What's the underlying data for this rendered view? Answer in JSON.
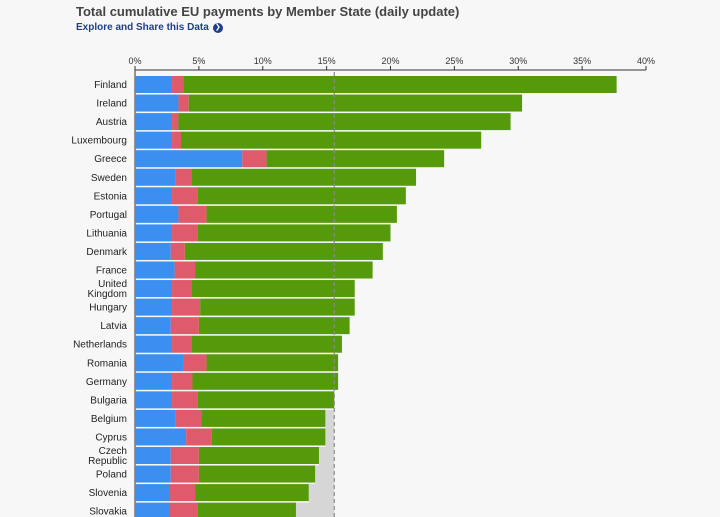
{
  "header": {
    "title": "Total cumulative EU payments by Member State (daily update)",
    "explore_label": "Explore and Share this Data"
  },
  "colors": {
    "blue": "#3b8ff0",
    "red": "#df5a6b",
    "green": "#559a0a",
    "shade": "#d6d6d6",
    "reference_line": "#8a8a8a",
    "link": "#1f3f8a"
  },
  "chart_data": {
    "type": "bar",
    "orientation": "horizontal",
    "stacked": true,
    "xlim": [
      0,
      40
    ],
    "x_ticks": [
      "0%",
      "5%",
      "10%",
      "15%",
      "20%",
      "25%",
      "30%",
      "35%",
      "40%"
    ],
    "reference_value": 15.6,
    "categories": [
      "Finland",
      "Ireland",
      "Austria",
      "Luxembourg",
      "Greece",
      "Sweden",
      "Estonia",
      "Portugal",
      "Lithuania",
      "Denmark",
      "France",
      "United Kingdom",
      "Hungary",
      "Latvia",
      "Netherlands",
      "Romania",
      "Germany",
      "Bulgaria",
      "Belgium",
      "Cyprus",
      "Czech Republic",
      "Poland",
      "Slovenia",
      "Slovakia"
    ],
    "category_lines": [
      [
        "Finland"
      ],
      [
        "Ireland"
      ],
      [
        "Austria"
      ],
      [
        "Luxembourg"
      ],
      [
        "Greece"
      ],
      [
        "Sweden"
      ],
      [
        "Estonia"
      ],
      [
        "Portugal"
      ],
      [
        "Lithuania"
      ],
      [
        "Denmark"
      ],
      [
        "France"
      ],
      [
        "United",
        "Kingdom"
      ],
      [
        "Hungary"
      ],
      [
        "Latvia"
      ],
      [
        "Netherlands"
      ],
      [
        "Romania"
      ],
      [
        "Germany"
      ],
      [
        "Bulgaria"
      ],
      [
        "Belgium"
      ],
      [
        "Cyprus"
      ],
      [
        "Czech",
        "Republic"
      ],
      [
        "Poland"
      ],
      [
        "Slovenia"
      ],
      [
        "Slovakia"
      ]
    ],
    "series": [
      {
        "color": "#3b8ff0",
        "values": [
          2.9,
          3.4,
          2.9,
          2.9,
          8.4,
          3.2,
          2.9,
          3.4,
          2.9,
          2.8,
          3.1,
          2.9,
          2.9,
          2.8,
          2.9,
          3.8,
          2.9,
          2.9,
          3.2,
          4.0,
          2.8,
          2.8,
          2.7,
          2.7
        ]
      },
      {
        "color": "#df5a6b",
        "values": [
          0.9,
          0.8,
          0.5,
          0.7,
          1.9,
          1.2,
          2.0,
          2.2,
          2.0,
          1.1,
          1.6,
          1.5,
          2.2,
          2.2,
          1.5,
          1.8,
          1.6,
          2.0,
          2.0,
          2.0,
          2.2,
          2.2,
          2.0,
          2.2
        ]
      },
      {
        "color": "#559a0a",
        "values": [
          33.9,
          26.1,
          26.0,
          23.5,
          13.9,
          17.6,
          16.3,
          14.9,
          15.1,
          15.5,
          13.9,
          12.8,
          12.1,
          11.8,
          11.8,
          10.3,
          11.4,
          10.7,
          9.7,
          8.9,
          9.4,
          9.1,
          8.9,
          7.7
        ]
      }
    ]
  }
}
